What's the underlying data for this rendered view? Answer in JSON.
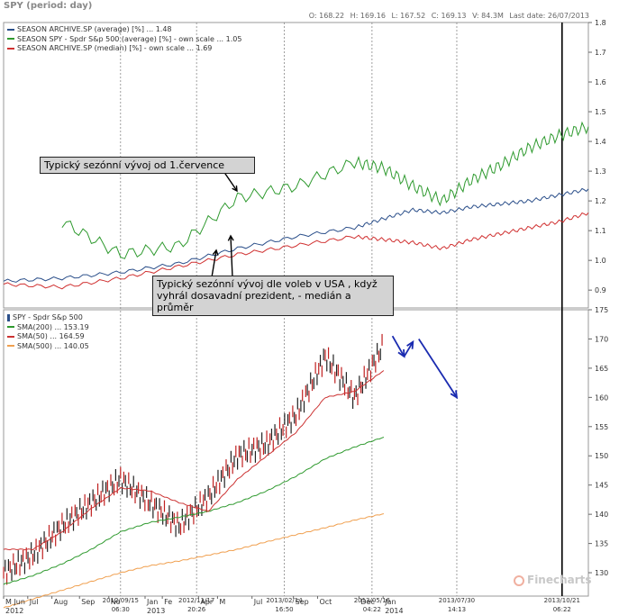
{
  "header": {
    "title": "SPY  (period: day)",
    "ohlc": [
      "O: 168.22",
      "H: 169.16",
      "L: 167.52",
      "C: 169.13",
      "V: 84.3M",
      "Last date: 26/07/2013"
    ]
  },
  "colors": {
    "blue": "#2b4f8a",
    "green": "#2f9a2f",
    "red": "#d03030",
    "sma200": "#2f9a2f",
    "sma50": "#cc3333",
    "sma500": "#f0a050",
    "arrow": "#1a2bb0",
    "note_bg": "#d3d3d3"
  },
  "top_legend": [
    {
      "label": "SEASON ARCHIVE.SP (average) [%] ... 1.48",
      "color": "#2b4f8a",
      "icon": "wave-icon"
    },
    {
      "label": "SEASON SPY - Spdr S&p 500 (average) [%] - own scale ... 1.05",
      "color": "#2f9a2f",
      "icon": "wave-icon"
    },
    {
      "label": "SEASON ARCHIVE.SP (median) [%] - own scale ... 1.69",
      "color": "#d03030",
      "icon": "wave-icon"
    }
  ],
  "bottom_legend": [
    {
      "label": "SPY - Spdr S&p 500",
      "color": "#2b4f8a",
      "icon": "candle-icon"
    },
    {
      "label": "SMA(200) ... 153.19",
      "color": "#2f9a2f",
      "icon": "wave-icon"
    },
    {
      "label": "SMA(50) ... 164.59",
      "color": "#cc3333",
      "icon": "wave-icon"
    },
    {
      "label": "SMA(500) ... 140.05",
      "color": "#f0a050",
      "icon": "wave-icon"
    }
  ],
  "annotations": {
    "note1": "Typický sezónní vývoj od 1.července",
    "note2_line1": "Typický sezónní vývoj dle voleb v USA , když",
    "note2_line2": "vyhrál dosavadní prezident, - medián a průměr"
  },
  "watermark": "Finecharts",
  "chart_data": [
    {
      "type": "line",
      "ylim": [
        0.84,
        1.8
      ],
      "yticks": [
        0.9,
        1.0,
        1.1,
        1.2,
        1.3,
        1.4,
        1.5,
        1.6,
        1.7,
        1.8
      ],
      "x_positions": [
        0.0,
        0.1,
        0.2,
        0.3,
        0.4,
        0.5,
        0.6,
        0.65,
        0.7,
        0.75,
        0.8,
        0.85,
        0.9,
        0.95,
        1.0
      ],
      "series": [
        {
          "name": "SEASON ARCHIVE.SP (average) [%]",
          "color": "#2b4f8a",
          "values": [
            0.93,
            0.94,
            0.96,
            0.99,
            1.04,
            1.08,
            1.11,
            1.14,
            1.17,
            1.16,
            1.18,
            1.19,
            1.2,
            1.22,
            1.24
          ]
        },
        {
          "name": "SEASON SPY - Spdr S&p 500 (average) [%]",
          "color": "#2f9a2f",
          "values": [
            null,
            1.13,
            1.02,
            1.05,
            1.21,
            1.25,
            1.33,
            1.31,
            1.25,
            1.2,
            1.27,
            1.32,
            1.38,
            1.42,
            1.45
          ]
        },
        {
          "name": "SEASON ARCHIVE.SP (median) [%]",
          "color": "#d03030",
          "values": [
            0.92,
            0.91,
            0.94,
            0.98,
            1.02,
            1.05,
            1.08,
            1.07,
            1.06,
            1.04,
            1.07,
            1.09,
            1.11,
            1.13,
            1.16
          ]
        }
      ]
    },
    {
      "type": "line",
      "ylim": [
        126,
        175
      ],
      "yticks": [
        130,
        135,
        140,
        145,
        150,
        155,
        160,
        165,
        170,
        175
      ],
      "x_positions": [
        0.0,
        0.05,
        0.1,
        0.15,
        0.2,
        0.25,
        0.3,
        0.35,
        0.4,
        0.45,
        0.5,
        0.55,
        0.6,
        0.65
      ],
      "series": [
        {
          "name": "SPY - Spdr S&p 500",
          "color": "#222222",
          "kind": "price",
          "values": [
            130,
            133,
            138,
            142,
            146,
            142,
            138,
            143,
            150,
            152,
            157,
            167,
            160,
            169
          ]
        },
        {
          "name": "SMA(200)",
          "color": "#2f9a2f",
          "values": [
            128,
            129.5,
            131.5,
            134,
            137,
            138.6,
            139.5,
            140.5,
            142,
            144,
            146.5,
            149.5,
            151.5,
            153.2
          ]
        },
        {
          "name": "SMA(50)",
          "color": "#cc3333",
          "values": [
            134,
            134,
            137,
            141,
            144.5,
            144,
            142,
            140.5,
            146,
            150,
            154,
            160,
            161,
            164.6
          ]
        },
        {
          "name": "SMA(500)",
          "color": "#f0a050",
          "values": [
            124,
            125.5,
            127,
            128.5,
            130,
            131.2,
            132,
            133,
            134,
            135.3,
            136.5,
            137.7,
            139,
            140.1
          ]
        }
      ],
      "arrows": [
        {
          "from": [
            0.665,
            170.5
          ],
          "to": [
            0.685,
            167
          ]
        },
        {
          "from": [
            0.685,
            167
          ],
          "to": [
            0.7,
            169.5
          ]
        },
        {
          "from": [
            0.71,
            170
          ],
          "to": [
            0.775,
            160
          ]
        }
      ]
    }
  ],
  "x_axis": {
    "ticks": [
      {
        "label": "M Jun",
        "x": 0.0
      },
      {
        "label": "Jul",
        "x": 0.07
      },
      {
        "label": "Aug",
        "x": 0.14
      },
      {
        "label": "Sep",
        "x": 0.22
      },
      {
        "label": "No",
        "x": 0.305
      },
      {
        "label": "Jan",
        "x": 0.41
      },
      {
        "label": "Fe",
        "x": 0.46
      },
      {
        "label": "Apr",
        "x": 0.565
      },
      {
        "label": "M",
        "x": 0.62
      },
      {
        "label": "Jul",
        "x": 0.72
      },
      {
        "label": "Sep",
        "x": 0.84
      },
      {
        "label": "Oct",
        "x": 0.91
      },
      {
        "label": "Dec",
        "x": 1.03
      },
      {
        "label": "Jan",
        "x": 1.1
      }
    ],
    "year_labels": [
      {
        "label": "2012",
        "x": 0.0
      },
      {
        "label": "2013",
        "x": 0.41
      },
      {
        "label": "2014",
        "x": 1.1
      }
    ],
    "event_markers": [
      {
        "date": "2012/09/15",
        "time": "06:30",
        "x": 0.2
      },
      {
        "date": "2012/11/17",
        "time": "20:26",
        "x": 0.33
      },
      {
        "date": "2013/02/14",
        "time": "16:50",
        "x": 0.48
      },
      {
        "date": "2013/05/16",
        "time": "04:22",
        "x": 0.63
      },
      {
        "date": "2013/07/30",
        "time": "14:13",
        "x": 0.775
      },
      {
        "date": "2013/10/21",
        "time": "06:22",
        "x": 0.955
      }
    ]
  }
}
